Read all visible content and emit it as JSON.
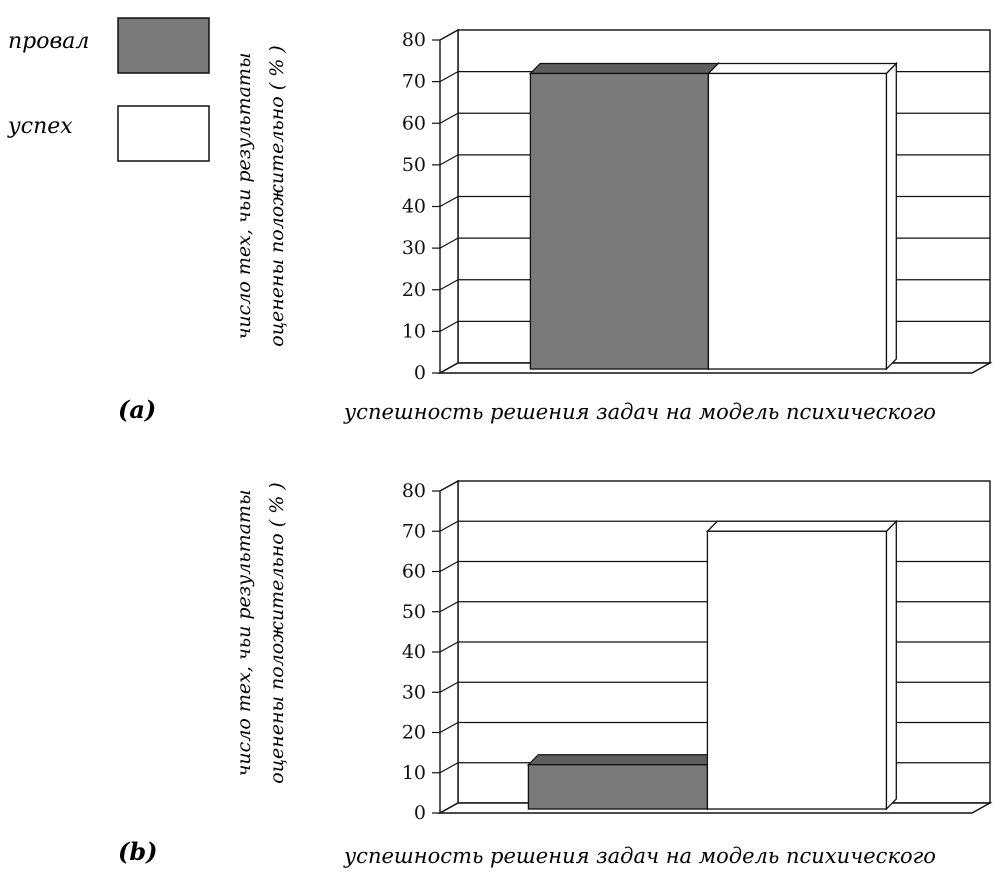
{
  "legend": [
    {
      "label": "провал",
      "color": "#7a7a7a"
    },
    {
      "label": "успех",
      "color": "#ffffff"
    }
  ],
  "chart_data": [
    {
      "type": "bar",
      "panel_label": "(a)",
      "categories": [
        "провал",
        "успех"
      ],
      "values": [
        71,
        71
      ],
      "colors": [
        "#7a7a7a",
        "#ffffff"
      ],
      "ylabel_line1": "число тех, чьи результаты",
      "ylabel_line2": "оценены положительно ( % )",
      "xlabel": "успешность решения задач на модель психического",
      "ylim": [
        0,
        80
      ],
      "yticks": [
        0,
        10,
        20,
        30,
        40,
        50,
        60,
        70,
        80
      ],
      "grid": true,
      "legend_position": "top-left"
    },
    {
      "type": "bar",
      "panel_label": "(b)",
      "categories": [
        "провал",
        "успех"
      ],
      "values": [
        11,
        69
      ],
      "colors": [
        "#7a7a7a",
        "#ffffff"
      ],
      "ylabel_line1": "число тех, чьи результаты",
      "ylabel_line2": "оценены положительно ( % )",
      "xlabel": "успешность решения задач на модель психического",
      "ylim": [
        0,
        80
      ],
      "yticks": [
        0,
        10,
        20,
        30,
        40,
        50,
        60,
        70,
        80
      ],
      "grid": true
    }
  ]
}
